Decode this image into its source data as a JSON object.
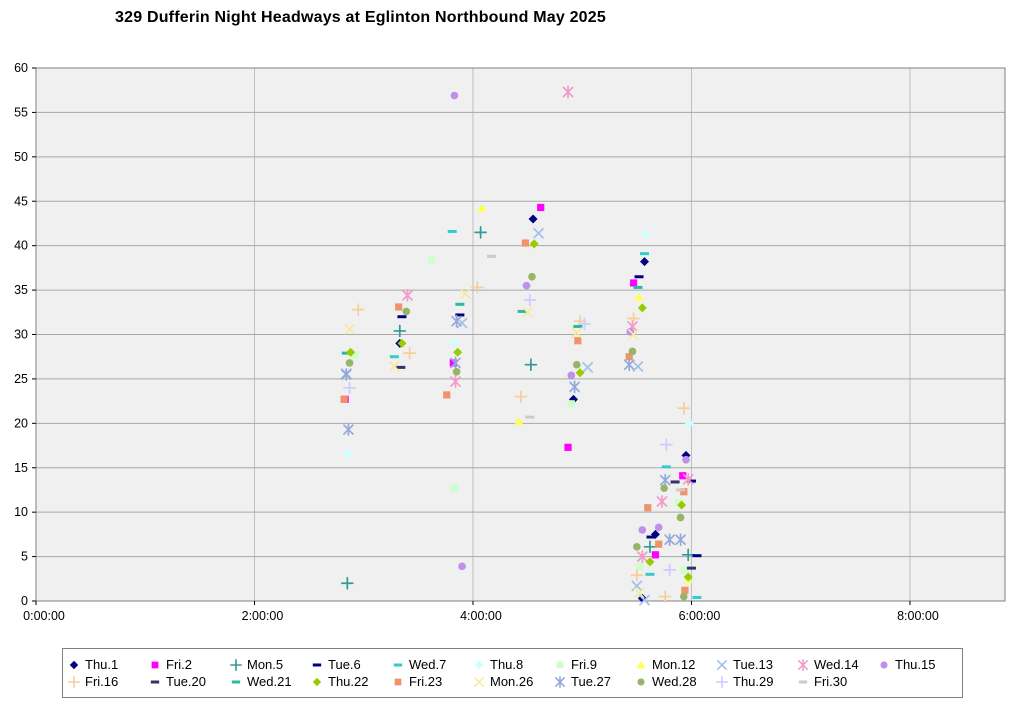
{
  "chart_data": {
    "type": "scatter",
    "title": "329 Dufferin Night Headways at Eglinton Northbound May 2025",
    "x_axis": {
      "tick_labels": [
        "0:00:00",
        "2:00:00",
        "4:00:00",
        "6:00:00",
        "8:00:00"
      ],
      "tick_hours": [
        0,
        2,
        4,
        6,
        8
      ],
      "max_hours": 8.87,
      "unit": "time of day (h:mm:ss)"
    },
    "y_axis": {
      "min": 0,
      "max": 60,
      "step": 5,
      "unit": "headway minutes"
    },
    "grid": true,
    "legend_position": "bottom",
    "plot_bg": "#F0F0F0",
    "gridline_color": "#A8A8A8",
    "border_color": "#808080",
    "series": [
      {
        "name": "Thu.1",
        "marker": "diamond",
        "color": "#000080",
        "points": [
          [
            3.33,
            29.0
          ],
          [
            4.55,
            43.0
          ],
          [
            4.92,
            22.7
          ],
          [
            5.55,
            0.3
          ],
          [
            5.57,
            38.2
          ],
          [
            5.67,
            7.5
          ],
          [
            5.95,
            16.4
          ]
        ]
      },
      {
        "name": "Fri.2",
        "marker": "square",
        "color": "#FF00FF",
        "points": [
          [
            2.83,
            22.7
          ],
          [
            3.82,
            26.8
          ],
          [
            4.62,
            44.3
          ],
          [
            4.87,
            17.3
          ],
          [
            5.47,
            35.8
          ],
          [
            5.67,
            5.2
          ],
          [
            5.92,
            14.1
          ]
        ]
      },
      {
        "name": "Mon.5",
        "marker": "plus",
        "color": "#339999",
        "points": [
          [
            2.85,
            2.0
          ],
          [
            3.33,
            30.4
          ],
          [
            4.07,
            41.5
          ],
          [
            4.53,
            26.6
          ],
          [
            5.62,
            6.1
          ],
          [
            5.97,
            5.2
          ]
        ]
      },
      {
        "name": "Tue.6",
        "marker": "dash",
        "color": "#000080",
        "points": [
          [
            3.35,
            32.0
          ],
          [
            3.88,
            32.2
          ],
          [
            5.52,
            36.5
          ],
          [
            5.63,
            7.2
          ],
          [
            6.0,
            13.5
          ],
          [
            6.05,
            5.1
          ]
        ]
      },
      {
        "name": "Wed.7",
        "marker": "dash",
        "color": "#33CCCC",
        "points": [
          [
            3.28,
            27.5
          ],
          [
            3.81,
            41.6
          ],
          [
            5.57,
            39.1
          ],
          [
            5.62,
            3.0
          ],
          [
            5.77,
            15.1
          ],
          [
            6.05,
            0.4
          ]
        ]
      },
      {
        "name": "Thu.8",
        "marker": "diamond",
        "color": "#CCFFFF",
        "points": [
          [
            2.85,
            16.6
          ],
          [
            3.83,
            29.1
          ],
          [
            5.58,
            41.3
          ],
          [
            5.98,
            20.0
          ]
        ]
      },
      {
        "name": "Fri.9",
        "marker": "square",
        "color": "#CCFFCC",
        "points": [
          [
            2.92,
            27.7
          ],
          [
            3.62,
            38.4
          ],
          [
            3.83,
            12.7
          ],
          [
            4.9,
            22.2
          ],
          [
            5.53,
            3.9
          ],
          [
            5.88,
            11.1
          ],
          [
            5.93,
            3.5
          ]
        ]
      },
      {
        "name": "Mon.12",
        "marker": "triangle",
        "color": "#FFFF4D",
        "points": [
          [
            4.08,
            44.2
          ],
          [
            4.42,
            20.2
          ],
          [
            5.52,
            34.2
          ],
          [
            5.97,
            2.4
          ]
        ]
      },
      {
        "name": "Tue.13",
        "marker": "x",
        "color": "#9FC3E8",
        "points": [
          [
            2.84,
            25.6
          ],
          [
            3.9,
            31.3
          ],
          [
            4.6,
            41.4
          ],
          [
            5.05,
            26.3
          ],
          [
            5.5,
            1.7
          ],
          [
            5.51,
            26.4
          ],
          [
            5.57,
            0.1
          ]
        ]
      },
      {
        "name": "Wed.14",
        "marker": "asterisk",
        "color": "#F49AC8",
        "points": [
          [
            3.4,
            34.4
          ],
          [
            3.84,
            24.7
          ],
          [
            4.87,
            57.3
          ],
          [
            5.46,
            30.9
          ],
          [
            5.55,
            5.0
          ],
          [
            5.73,
            11.2
          ],
          [
            5.97,
            13.7
          ]
        ]
      },
      {
        "name": "Thu.15",
        "marker": "circle",
        "color": "#BF8FEA",
        "points": [
          [
            3.83,
            56.9
          ],
          [
            3.9,
            3.9
          ],
          [
            4.49,
            35.5
          ],
          [
            4.9,
            25.4
          ],
          [
            5.44,
            30.3
          ],
          [
            5.55,
            8.0
          ],
          [
            5.7,
            8.3
          ],
          [
            5.95,
            15.9
          ]
        ]
      },
      {
        "name": "Fri.16",
        "marker": "plus",
        "color": "#F6CD9B",
        "points": [
          [
            2.95,
            32.8
          ],
          [
            3.42,
            27.9
          ],
          [
            4.04,
            35.3
          ],
          [
            4.44,
            23.0
          ],
          [
            4.98,
            31.5
          ],
          [
            5.47,
            31.8
          ],
          [
            5.5,
            2.9
          ],
          [
            5.76,
            0.5
          ],
          [
            5.93,
            21.7
          ]
        ]
      },
      {
        "name": "Tue.20",
        "marker": "dash",
        "color": "#333366",
        "points": [
          [
            3.34,
            26.3
          ],
          [
            5.85,
            13.4
          ],
          [
            6.0,
            3.7
          ]
        ]
      },
      {
        "name": "Wed.21",
        "marker": "dash",
        "color": "#2EB8A0",
        "points": [
          [
            2.84,
            27.9
          ],
          [
            3.88,
            33.4
          ],
          [
            4.45,
            32.6
          ],
          [
            4.96,
            30.9
          ],
          [
            5.51,
            35.3
          ]
        ]
      },
      {
        "name": "Thu.22",
        "marker": "diamond",
        "color": "#99CC00",
        "points": [
          [
            2.88,
            28.0
          ],
          [
            3.35,
            29.0
          ],
          [
            3.86,
            28.0
          ],
          [
            4.56,
            40.2
          ],
          [
            4.98,
            25.7
          ],
          [
            5.55,
            33.0
          ],
          [
            5.62,
            4.4
          ],
          [
            5.91,
            10.8
          ],
          [
            5.97,
            2.7
          ]
        ]
      },
      {
        "name": "Fri.23",
        "marker": "square",
        "color": "#F0936B",
        "points": [
          [
            2.82,
            22.7
          ],
          [
            3.32,
            33.1
          ],
          [
            3.76,
            23.2
          ],
          [
            4.48,
            40.3
          ],
          [
            4.96,
            29.3
          ],
          [
            5.43,
            27.5
          ],
          [
            5.6,
            10.5
          ],
          [
            5.7,
            6.4
          ],
          [
            5.93,
            12.3
          ],
          [
            5.94,
            1.2
          ]
        ]
      },
      {
        "name": "Mon.26",
        "marker": "x",
        "color": "#F7E9A0",
        "points": [
          [
            2.87,
            30.6
          ],
          [
            3.28,
            26.4
          ],
          [
            3.93,
            34.6
          ],
          [
            4.5,
            32.5
          ],
          [
            4.95,
            30.2
          ],
          [
            5.47,
            30.0
          ],
          [
            5.52,
            0.9
          ]
        ]
      },
      {
        "name": "Tue.27",
        "marker": "asterisk",
        "color": "#93A9DC",
        "points": [
          [
            2.84,
            25.5
          ],
          [
            2.86,
            19.3
          ],
          [
            3.84,
            26.8
          ],
          [
            3.85,
            31.5
          ],
          [
            4.93,
            24.1
          ],
          [
            5.43,
            26.6
          ],
          [
            5.76,
            13.6
          ],
          [
            5.8,
            6.9
          ],
          [
            5.9,
            6.9
          ]
        ]
      },
      {
        "name": "Wed.28",
        "marker": "circle",
        "color": "#97B568",
        "points": [
          [
            2.87,
            26.8
          ],
          [
            3.39,
            32.6
          ],
          [
            3.85,
            25.8
          ],
          [
            4.54,
            36.5
          ],
          [
            4.95,
            26.6
          ],
          [
            5.46,
            28.1
          ],
          [
            5.5,
            6.1
          ],
          [
            5.75,
            12.7
          ],
          [
            5.9,
            9.4
          ],
          [
            5.93,
            0.5
          ]
        ]
      },
      {
        "name": "Thu.29",
        "marker": "plus",
        "color": "#CCCCFF",
        "points": [
          [
            2.87,
            24.0
          ],
          [
            4.52,
            33.9
          ],
          [
            5.02,
            31.2
          ],
          [
            5.77,
            17.6
          ],
          [
            5.8,
            3.5
          ]
        ]
      },
      {
        "name": "Fri.30",
        "marker": "dash",
        "color": "#D6C6C6",
        "points": [
          [
            4.17,
            38.8
          ],
          [
            4.52,
            20.7
          ],
          [
            5.9,
            12.5
          ]
        ]
      }
    ]
  }
}
